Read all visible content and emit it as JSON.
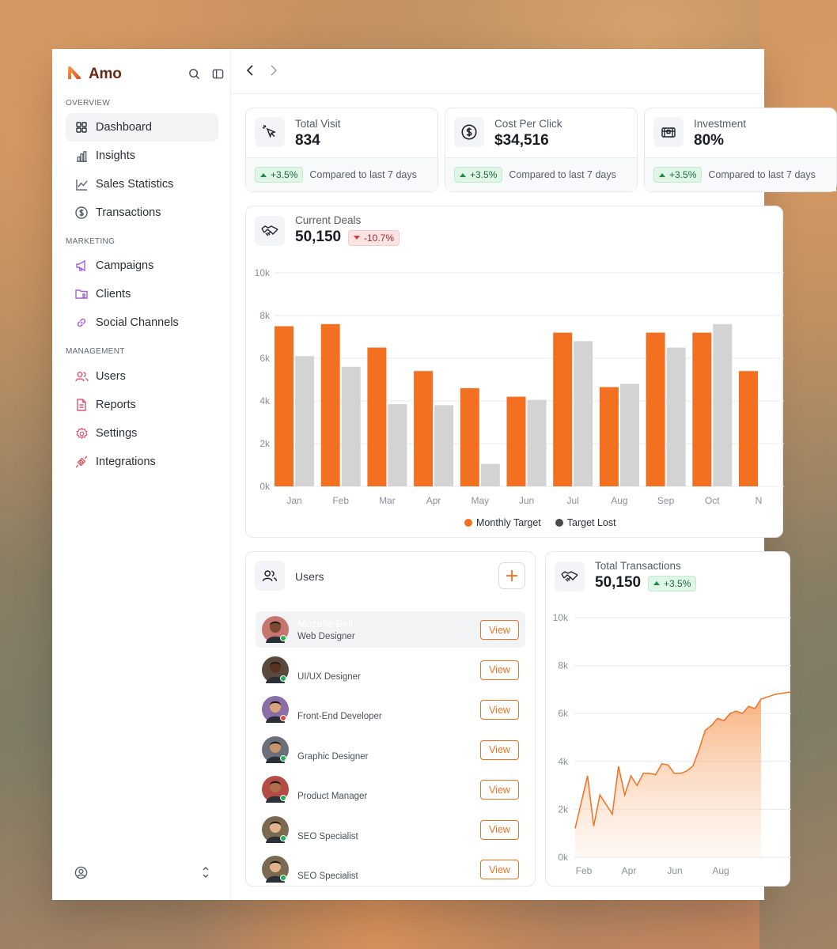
{
  "brand": {
    "name": "Amo",
    "accent": "#F37021"
  },
  "sidebar": {
    "sections": [
      {
        "label": "OVERVIEW"
      },
      {
        "label": "MARKETING"
      },
      {
        "label": "MANAGEMENT"
      }
    ],
    "items": [
      {
        "label": "Dashboard",
        "icon": "grid-icon"
      },
      {
        "label": "Insights",
        "icon": "bar-chart-icon"
      },
      {
        "label": "Sales Statistics",
        "icon": "line-chart-icon"
      },
      {
        "label": "Transactions",
        "icon": "dollar-circle-icon"
      },
      {
        "label": "Campaigns",
        "icon": "megaphone-icon"
      },
      {
        "label": "Clients",
        "icon": "folder-user-icon"
      },
      {
        "label": "Social Channels",
        "icon": "link-icon"
      },
      {
        "label": "Users",
        "icon": "users-icon"
      },
      {
        "label": "Reports",
        "icon": "document-icon"
      },
      {
        "label": "Settings",
        "icon": "gear-icon"
      },
      {
        "label": "Integrations",
        "icon": "plug-icon"
      }
    ]
  },
  "stats": [
    {
      "label": "Total Visit",
      "value": "834",
      "change": "+3.5%",
      "compare": "Compared to last 7 days",
      "icon": "cursor-click-icon"
    },
    {
      "label": "Cost Per Click",
      "value": "$34,516",
      "change": "+3.5%",
      "compare": "Compared to last 7 days",
      "icon": "dollar-circle-icon"
    },
    {
      "label": "Investment",
      "value": "80%",
      "change": "+3.5%",
      "compare": "Compared to last 7 days",
      "icon": "treasure-icon"
    }
  ],
  "deals": {
    "label": "Current Deals",
    "value": "50,150",
    "change": "-10.7%"
  },
  "users_card": {
    "title": "Users",
    "view_label": "View",
    "rows": [
      {
        "name": "Mozelle Belt",
        "role": "Web Designer",
        "status": "online"
      },
      {
        "name": "",
        "role": "UI/UX Designer",
        "status": "online"
      },
      {
        "name": "",
        "role": "Front-End Developer",
        "status": "offline"
      },
      {
        "name": "",
        "role": "Graphic Designer",
        "status": "online"
      },
      {
        "name": "",
        "role": "Product Manager",
        "status": "online"
      },
      {
        "name": "",
        "role": "SEO Specialist",
        "status": "online"
      },
      {
        "name": "",
        "role": "SEO Specialist",
        "status": "online"
      }
    ]
  },
  "transactions": {
    "label": "Total Transactions",
    "value": "50,150",
    "change": "+3.5%"
  },
  "chart_data": [
    {
      "type": "bar",
      "categories": [
        "Jan",
        "Feb",
        "Mar",
        "Apr",
        "May",
        "Jun",
        "Jul",
        "Aug",
        "Sep",
        "Oct",
        "N"
      ],
      "series": [
        {
          "name": "Monthly Target",
          "color": "#F37021",
          "values": [
            7500,
            7600,
            6500,
            5400,
            4600,
            4200,
            7200,
            4650,
            7200,
            7200,
            5400
          ]
        },
        {
          "name": "Target Lost",
          "color": "#D3D3D3",
          "values": [
            6100,
            5600,
            3850,
            3800,
            1050,
            4050,
            6800,
            4800,
            6500,
            7600,
            null
          ]
        }
      ],
      "yticks": [
        "0k",
        "2k",
        "4k",
        "6k",
        "8k",
        "10k"
      ],
      "ylim": [
        0,
        10000
      ],
      "legend": [
        "Monthly Target",
        "Target Lost"
      ],
      "legend_dot_colors": [
        "#F37021",
        "#4A4A4A"
      ],
      "legend_position": "bottom-center",
      "grid": true
    },
    {
      "type": "area",
      "color": "#F37021",
      "xticks": [
        "Feb",
        "Apr",
        "Jun",
        "Aug"
      ],
      "yticks": [
        "0k",
        "2k",
        "4k",
        "6k",
        "8k",
        "10k"
      ],
      "ylim": [
        0,
        10000
      ],
      "values": [
        1200,
        2300,
        3400,
        1300,
        2600,
        2200,
        1800,
        3800,
        2600,
        3400,
        3000,
        3500,
        3500,
        3450,
        3900,
        3850,
        3500,
        3500,
        3600,
        3800,
        4500,
        5300,
        5500,
        5800,
        5700,
        6000,
        6100,
        6000,
        6300,
        6200,
        6600
      ],
      "grid": true
    }
  ]
}
